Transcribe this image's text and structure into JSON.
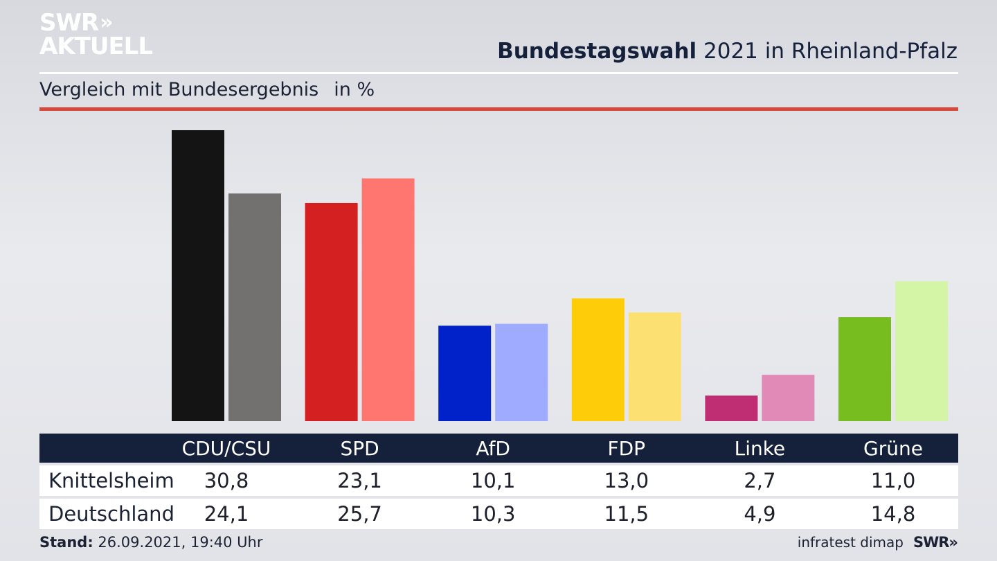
{
  "logo": {
    "line1": "SWR",
    "line2": "AKTUELL",
    "chevrons": "»"
  },
  "header": {
    "title_bold": "Bundestagswahl",
    "title_rest": " 2021 in Rheinland-Pfalz",
    "subtitle": "Vergleich mit Bundesergebnis",
    "unit": "in %"
  },
  "colors": {
    "accent_red": "#d9473a",
    "navy": "#15203a"
  },
  "chart_data": {
    "type": "bar",
    "categories": [
      "CDU/CSU",
      "SPD",
      "AfD",
      "FDP",
      "Linke",
      "Grüne"
    ],
    "series": [
      {
        "name": "Knittelsheim",
        "values": [
          30.8,
          23.1,
          10.1,
          13.0,
          2.7,
          11.0
        ],
        "colors": [
          "#141414",
          "#d42020",
          "#0022c8",
          "#ffcc0a",
          "#bf2e73",
          "#78bd1f"
        ]
      },
      {
        "name": "Deutschland",
        "values": [
          24.1,
          25.7,
          10.3,
          11.5,
          4.9,
          14.8
        ],
        "colors": [
          "#737170",
          "#ff7570",
          "#9eabff",
          "#fde072",
          "#e18ab8",
          "#d3f5a5"
        ]
      }
    ],
    "ylim": [
      0,
      30.8
    ],
    "display_values": [
      [
        "30,8",
        "23,1",
        "10,1",
        "13,0",
        "2,7",
        "11,0"
      ],
      [
        "24,1",
        "25,7",
        "10,3",
        "11,5",
        "4,9",
        "14,8"
      ]
    ]
  },
  "footer": {
    "stand_label": "Stand:",
    "stand_value": " 26.09.2021, 19:40 Uhr",
    "source": "infratest dimap",
    "brand": "SWR»"
  }
}
